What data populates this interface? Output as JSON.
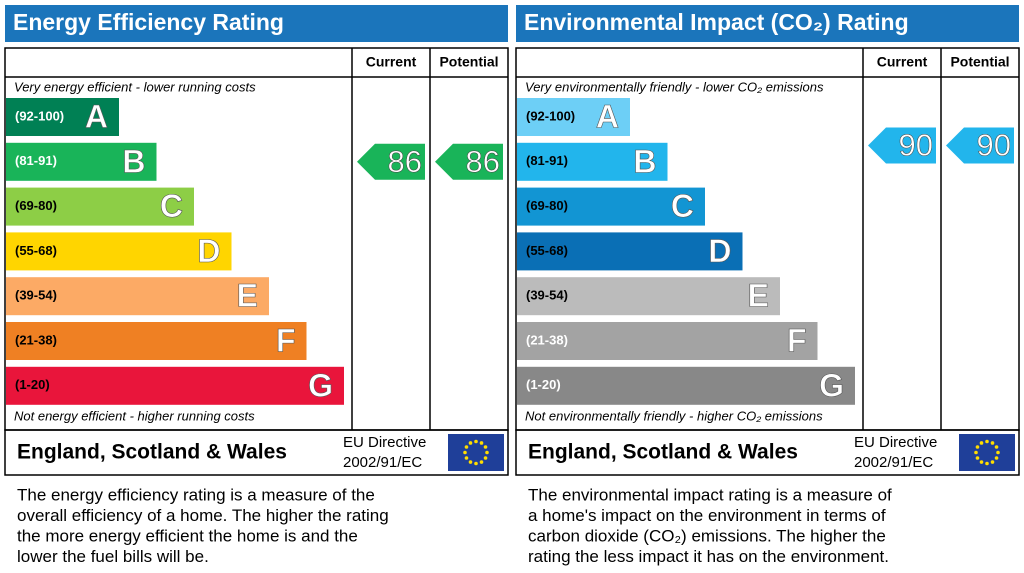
{
  "panels": [
    {
      "title": "Energy Efficiency Rating",
      "columns": [
        "Current",
        "Potential"
      ],
      "top_note": "Very energy efficient - lower running costs",
      "bottom_note": "Not energy efficient - higher running costs",
      "bands": [
        {
          "range": "(92-100)",
          "letter": "A",
          "color": "#008054",
          "label_color": "#ffffff"
        },
        {
          "range": "(81-91)",
          "letter": "B",
          "color": "#19b459",
          "label_color": "#ffffff"
        },
        {
          "range": "(69-80)",
          "letter": "C",
          "color": "#8dce46",
          "label_color": "#000000"
        },
        {
          "range": "(55-68)",
          "letter": "D",
          "color": "#ffd500",
          "label_color": "#000000"
        },
        {
          "range": "(39-54)",
          "letter": "E",
          "color": "#fcaa65",
          "label_color": "#000000"
        },
        {
          "range": "(21-38)",
          "letter": "F",
          "color": "#ef8023",
          "label_color": "#000000"
        },
        {
          "range": "(1-20)",
          "letter": "G",
          "color": "#e9153b",
          "label_color": "#000000"
        }
      ],
      "current": 86,
      "potential": 86,
      "region": "England, Scotland & Wales",
      "directive": [
        "EU Directive",
        "2002/91/EC"
      ],
      "description": [
        "The energy efficiency rating is a measure of the",
        "overall efficiency of a home. The higher the rating",
        "the more energy efficient the home is and the",
        "lower the fuel bills will be."
      ]
    },
    {
      "title": "Environmental Impact (CO₂) Rating",
      "columns": [
        "Current",
        "Potential"
      ],
      "top_note": "Very environmentally friendly - lower CO₂ emissions",
      "bottom_note": "Not environmentally friendly - higher CO₂ emissions",
      "bands": [
        {
          "range": "(92-100)",
          "letter": "A",
          "color": "#6dcff6",
          "label_color": "#000000"
        },
        {
          "range": "(81-91)",
          "letter": "B",
          "color": "#22b5ec",
          "label_color": "#000000"
        },
        {
          "range": "(69-80)",
          "letter": "C",
          "color": "#1295d3",
          "label_color": "#000000"
        },
        {
          "range": "(55-68)",
          "letter": "D",
          "color": "#0a6fb5",
          "label_color": "#000000"
        },
        {
          "range": "(39-54)",
          "letter": "E",
          "color": "#bbbbbb",
          "label_color": "#000000"
        },
        {
          "range": "(21-38)",
          "letter": "F",
          "color": "#a3a3a3",
          "label_color": "#ffffff"
        },
        {
          "range": "(1-20)",
          "letter": "G",
          "color": "#888888",
          "label_color": "#ffffff"
        }
      ],
      "current": 90,
      "potential": 90,
      "region": "England, Scotland & Wales",
      "directive": [
        "EU Directive",
        "2002/91/EC"
      ],
      "description": [
        "The environmental impact rating is a measure of",
        "a home's impact on the environment in terms of",
        "carbon dioxide (CO₂) emissions. The higher the",
        "rating the less impact it has on the environment."
      ]
    }
  ]
}
